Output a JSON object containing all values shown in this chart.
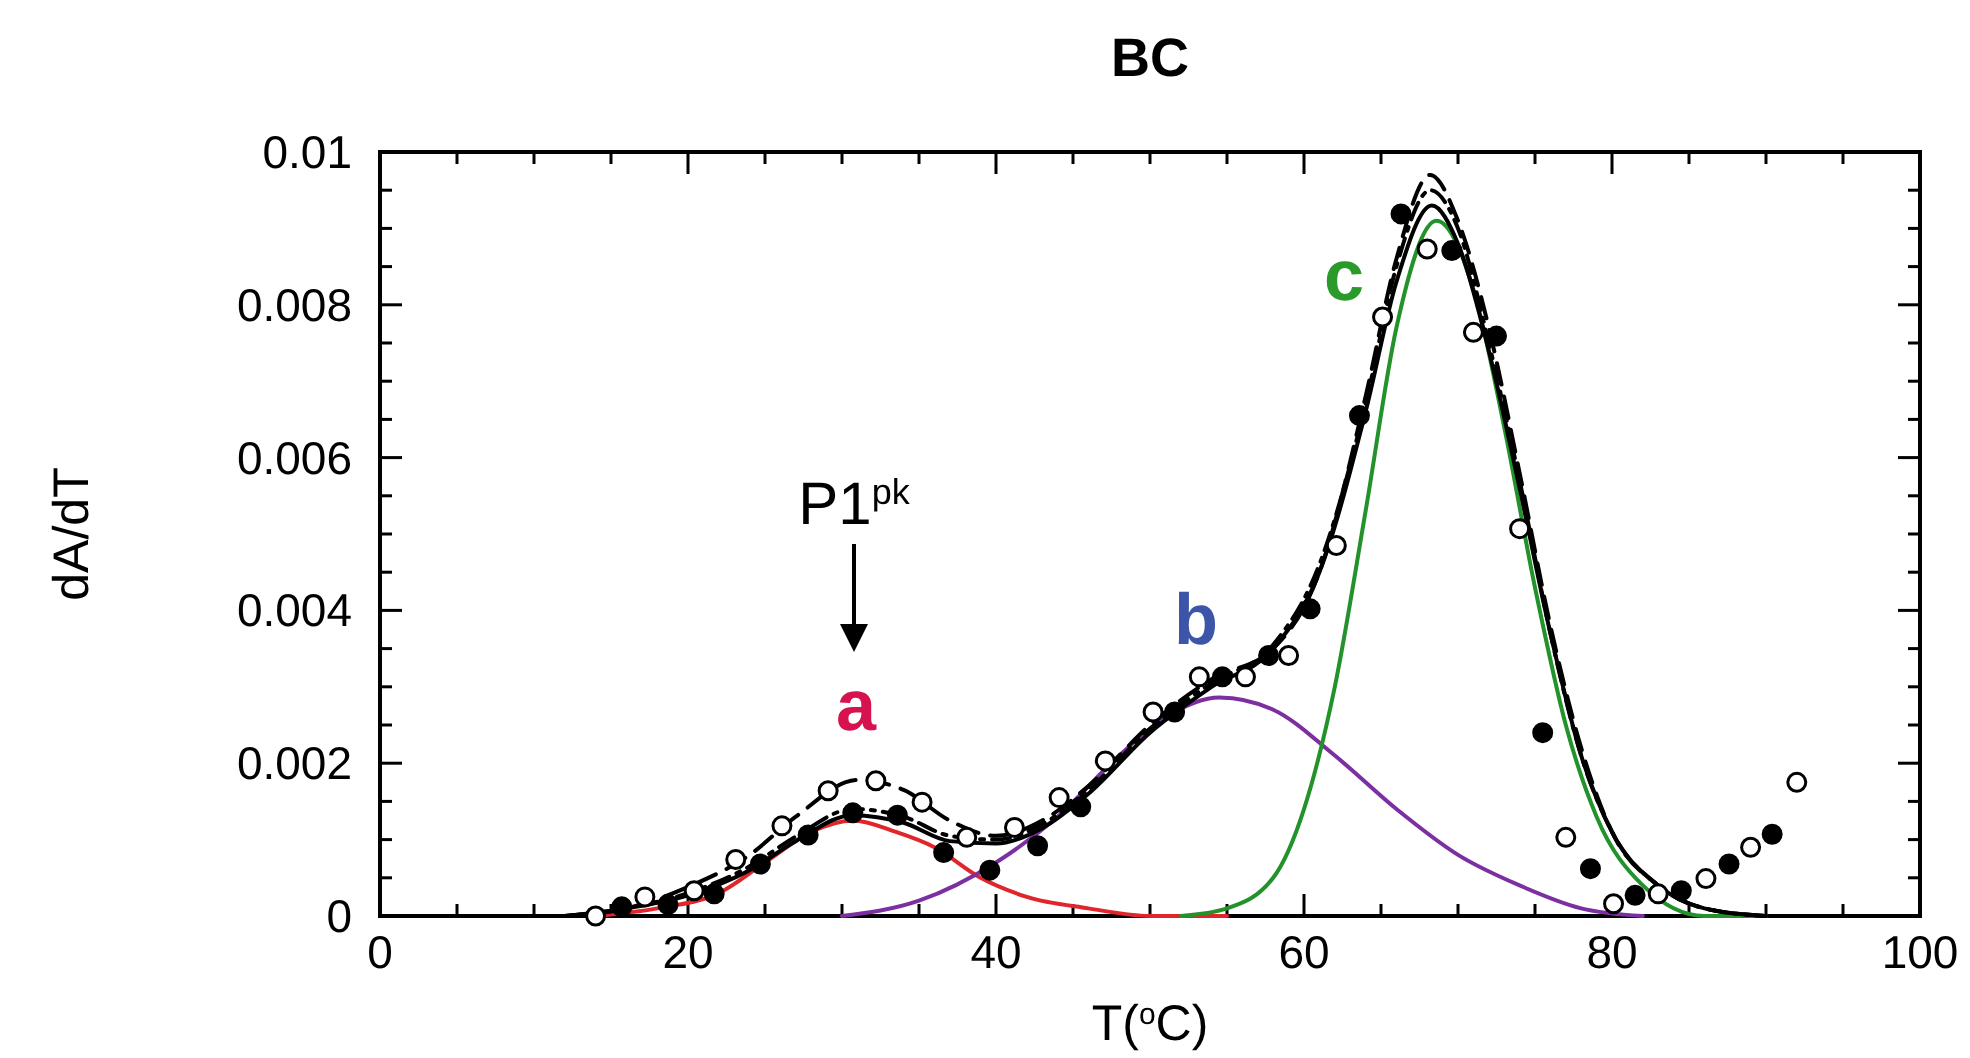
{
  "chart_data": {
    "type": "line",
    "title": "BC",
    "xlabel": "T($^{o}$C)",
    "ylabel": "dA/dT",
    "xlim": [
      0,
      100
    ],
    "ylim": [
      0,
      0.01
    ],
    "xticks": [
      0,
      {
        "value": 5,
        "label": null
      },
      20,
      {
        "value": 10,
        "label": null
      },
      {
        "value": 15,
        "label": null
      },
      {
        "value": 25,
        "label": null
      },
      40,
      {
        "value": 30,
        "label": null
      },
      {
        "value": 35,
        "label": null
      },
      {
        "value": 45,
        "label": null
      },
      60,
      {
        "value": 50,
        "label": null
      },
      {
        "value": 55,
        "label": null
      },
      {
        "value": 65,
        "label": null
      },
      80,
      {
        "value": 70,
        "label": null
      },
      {
        "value": 75,
        "label": null
      },
      {
        "value": 85,
        "label": null
      },
      {
        "value": 90,
        "label": null
      },
      {
        "value": 95,
        "label": null
      },
      100
    ],
    "yticks": [
      0,
      {
        "value": 0.0005,
        "label": null
      },
      {
        "value": 0.001,
        "label": null
      },
      {
        "value": 0.0015,
        "label": null
      },
      0.002,
      {
        "value": 0.0025,
        "label": null
      },
      {
        "value": 0.003,
        "label": null
      },
      {
        "value": 0.0035,
        "label": null
      },
      0.004,
      {
        "value": 0.0045,
        "label": null
      },
      {
        "value": 0.005,
        "label": null
      },
      {
        "value": 0.0055,
        "label": null
      },
      0.006,
      {
        "value": 0.0065,
        "label": null
      },
      {
        "value": 0.007,
        "label": null
      },
      {
        "value": 0.0075,
        "label": null
      },
      0.008,
      {
        "value": 0.0085,
        "label": null
      },
      {
        "value": 0.009,
        "label": null
      },
      {
        "value": 0.0095,
        "label": null
      },
      0.01
    ],
    "grid": false,
    "series": [
      {
        "color": "#e0262b",
        "line_style": "solid",
        "x": [
          14,
          18,
          22,
          25,
          28,
          30.7,
          33.5,
          36,
          39,
          42,
          46,
          50,
          55
        ],
        "values": [
          0,
          0.0001,
          0.0003,
          0.0007,
          0.0011,
          0.00125,
          0.0011,
          0.0009,
          0.0005,
          0.00025,
          0.0001,
          0,
          0
        ]
      },
      {
        "color": "#7b2fa0",
        "line_style": "solid",
        "x": [
          30,
          35,
          40,
          44,
          48,
          51,
          54.5,
          58,
          62,
          66,
          70,
          74,
          78,
          82
        ],
        "values": [
          0,
          0.0002,
          0.0007,
          0.0013,
          0.0021,
          0.0026,
          0.00286,
          0.0027,
          0.0021,
          0.0014,
          0.0008,
          0.0004,
          0.0001,
          0
        ]
      },
      {
        "color": "#23922a",
        "line_style": "solid",
        "x": [
          52,
          55,
          58,
          60,
          62,
          64,
          66,
          68.6,
          71,
          73,
          75,
          77,
          79,
          82,
          86,
          90
        ],
        "values": [
          0,
          0.0001,
          0.0005,
          0.0014,
          0.003,
          0.0053,
          0.0077,
          0.0091,
          0.0082,
          0.0064,
          0.0043,
          0.0025,
          0.0013,
          0.0004,
          0,
          0
        ]
      },
      {
        "color": "#000000",
        "line_style": "solid",
        "x": [
          12,
          16,
          20,
          24,
          27,
          30.7,
          34,
          37,
          40,
          43,
          46,
          50,
          54,
          58,
          61,
          64,
          66,
          68.3,
          70,
          72,
          74,
          76,
          78,
          80,
          83,
          86,
          90
        ],
        "values": [
          0,
          0.0001,
          0.00027,
          0.0006,
          0.00098,
          0.00132,
          0.00122,
          0.00098,
          0.00095,
          0.00115,
          0.0016,
          0.0024,
          0.003,
          0.0035,
          0.0045,
          0.0066,
          0.0083,
          0.0093,
          0.0088,
          0.0074,
          0.0056,
          0.0037,
          0.0021,
          0.0011,
          0.0004,
          0.0001,
          0
        ]
      },
      {
        "color": "#000000",
        "line_style": "dotted",
        "x": [
          12,
          16,
          20,
          24,
          27,
          30.7,
          34,
          37,
          40,
          43,
          46,
          50,
          54,
          58,
          61,
          64,
          66,
          68.2,
          70,
          72,
          74,
          76,
          78,
          80,
          83,
          86,
          90
        ],
        "values": [
          0,
          0.0001,
          0.0003,
          0.00065,
          0.00104,
          0.0014,
          0.0013,
          0.00105,
          0.001,
          0.0012,
          0.00165,
          0.00245,
          0.00305,
          0.00355,
          0.0046,
          0.0067,
          0.0085,
          0.0095,
          0.009,
          0.0075,
          0.0057,
          0.0037,
          0.0021,
          0.0011,
          0.0004,
          0.0001,
          0
        ]
      },
      {
        "color": "#000000",
        "line_style": "dashed",
        "x": [
          12,
          16,
          20,
          24,
          27,
          31,
          34,
          37,
          40,
          43,
          46,
          50,
          54,
          58,
          61,
          64,
          66,
          68.2,
          70,
          72,
          74,
          76,
          78,
          80,
          83,
          86,
          90
        ],
        "values": [
          0,
          0.0001,
          0.00038,
          0.0008,
          0.0013,
          0.00178,
          0.00165,
          0.00125,
          0.00105,
          0.00125,
          0.0017,
          0.0025,
          0.0031,
          0.0035,
          0.0045,
          0.0068,
          0.0086,
          0.0097,
          0.0091,
          0.0077,
          0.0058,
          0.0038,
          0.0022,
          0.0011,
          0.0004,
          0.0001,
          0
        ]
      },
      {
        "type": "scatter",
        "color": "#000000",
        "marker": "circle",
        "x": [
          15.7,
          18.7,
          21.7,
          24.7,
          27.8,
          30.7,
          33.6,
          36.6,
          39.6,
          42.7,
          45.5,
          51.6,
          54.7,
          57.7,
          60.4,
          63.6,
          66.3,
          69.6,
          72.5,
          75.5,
          78.6,
          81.5,
          84.5,
          87.6,
          90.4
        ],
        "values": [
          0.00012,
          0.00015,
          0.00029,
          0.00068,
          0.00106,
          0.00135,
          0.00132,
          0.00083,
          0.0006,
          0.00092,
          0.00143,
          0.00267,
          0.00313,
          0.00341,
          0.00402,
          0.00655,
          0.00919,
          0.00871,
          0.00759,
          0.0024,
          0.00062,
          0.00027,
          0.00033,
          0.00068,
          0.00107
        ]
      },
      {
        "type": "scatter",
        "color": "#000000",
        "marker": "circle",
        "x": [
          14,
          17.2,
          20.4,
          23.1,
          26.1,
          29.1,
          32.2,
          35.2,
          38.1,
          41.2,
          44.1,
          47.1,
          50.2,
          53.2,
          56.2,
          59,
          62.1,
          65.1,
          68,
          71,
          74,
          77,
          80.1,
          83,
          86.1,
          89,
          92
        ],
        "values": [
          0,
          0.00025,
          0.00033,
          0.00074,
          0.00118,
          0.00164,
          0.00177,
          0.00149,
          0.00103,
          0.00116,
          0.00155,
          0.00203,
          0.00267,
          0.00313,
          0.00313,
          0.00341,
          0.00485,
          0.00784,
          0.00873,
          0.00764,
          0.00507,
          0.00103,
          0.00016,
          0.00029,
          0.00049,
          0.0009,
          0.00175
        ]
      }
    ],
    "annotations": [
      "P1$^{pk}$",
      "a",
      "b",
      "c"
    ]
  }
}
